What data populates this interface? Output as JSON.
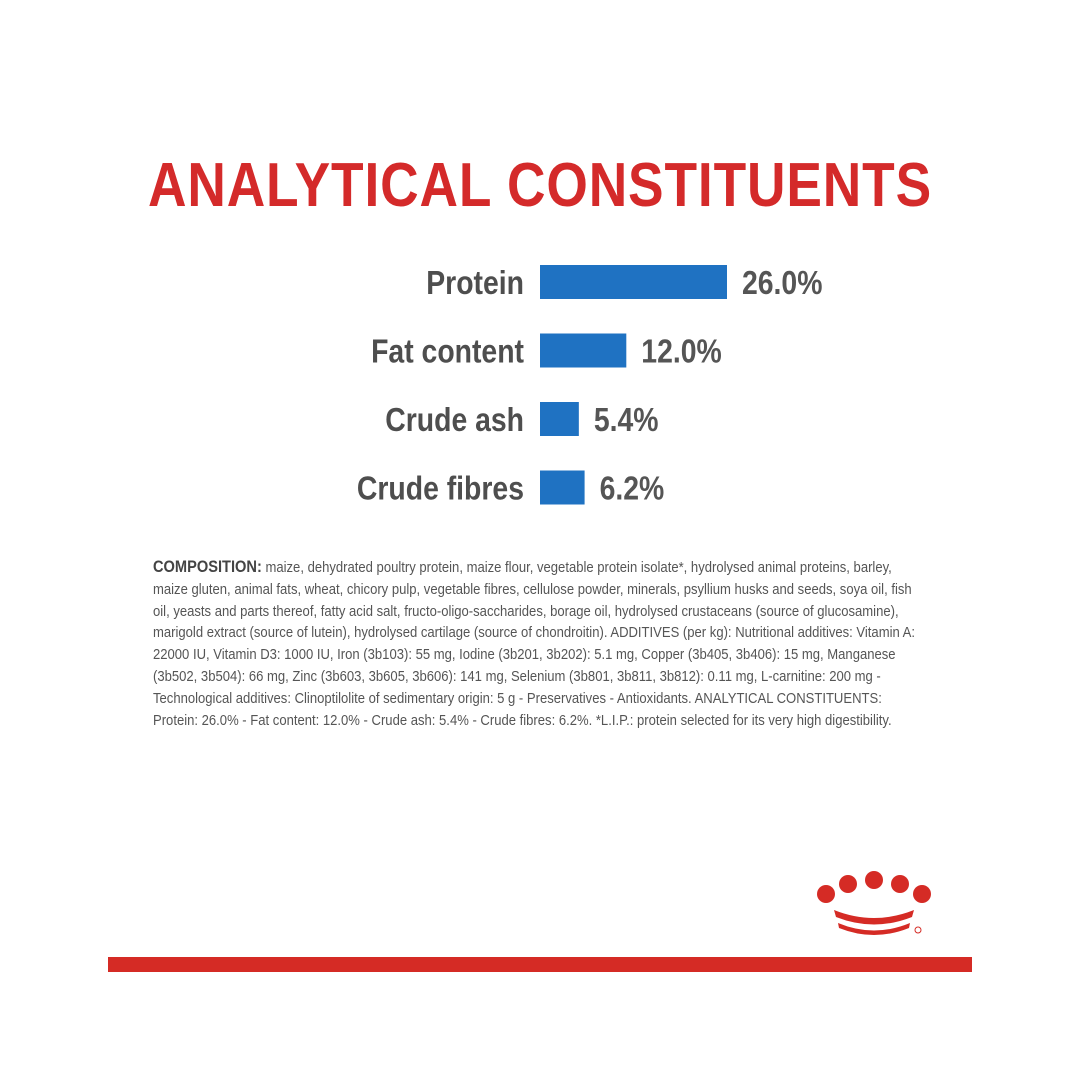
{
  "colors": {
    "title": "#d42a2a",
    "bar": "#1f72c2",
    "label": "#4e4e4e",
    "value": "#555555",
    "accent_red": "#d52b25"
  },
  "chart_data": {
    "type": "bar",
    "orientation": "horizontal",
    "title": "ANALYTICAL CONSTITUENTS",
    "categories": [
      "Protein",
      "Fat content",
      "Crude ash",
      "Crude fibres"
    ],
    "values": [
      26.0,
      12.0,
      5.4,
      6.2
    ],
    "value_labels": [
      "26.0%",
      "12.0%",
      "5.4%",
      "6.2%"
    ],
    "unit": "%",
    "xlim": [
      0,
      26.0
    ],
    "grid": false,
    "legend": "none"
  },
  "composition": {
    "label": "COMPOSITION:",
    "text": " maize, dehydrated poultry protein, maize flour, vegetable protein isolate*, hydrolysed animal proteins, barley, maize gluten, animal fats, wheat, chicory pulp, vegetable fibres, cellulose powder, minerals, psyllium husks and seeds, soya oil, fish oil, yeasts and parts thereof, fatty acid salt, fructo-oligo-saccharides, borage oil, hydrolysed crustaceans (source of glucosamine), marigold extract (source of lutein), hydrolysed cartilage (source of chondroitin). ADDITIVES (per kg): Nutritional additives: Vitamin A: 22000 IU, Vitamin D3: 1000 IU, Iron (3b103): 55 mg, Iodine (3b201, 3b202): 5.1 mg, Copper (3b405, 3b406): 15 mg, Manganese (3b502, 3b504): 66 mg, Zinc (3b603, 3b605, 3b606): 141 mg, Selenium (3b801, 3b811, 3b812): 0.11 mg, L-carnitine: 200 mg - Technological additives: Clinoptilolite of sedimentary origin: 5 g - Preservatives - Antioxidants. ANALYTICAL CONSTITUENTS: Protein: 26.0% - Fat content: 12.0% - Crude ash: 5.4% - Crude fibres: 6.2%. *L.I.P.: protein selected for its very high digestibility."
  },
  "logo": {
    "icon": "crown-icon"
  }
}
